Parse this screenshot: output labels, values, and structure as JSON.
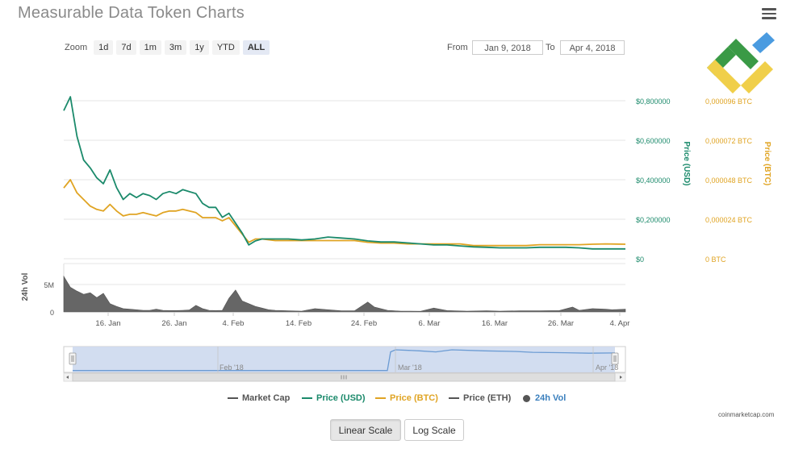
{
  "title": "Measurable Data Token Charts",
  "zoom": {
    "label": "Zoom",
    "buttons": [
      "1d",
      "7d",
      "1m",
      "3m",
      "1y",
      "YTD",
      "ALL"
    ],
    "active": "ALL"
  },
  "range": {
    "from_label": "From",
    "from_value": "Jan 9, 2018",
    "to_label": "To",
    "to_value": "Apr 4, 2018"
  },
  "legend": [
    {
      "label": "Market Cap",
      "color": "#555555",
      "kind": "line"
    },
    {
      "label": "Price (USD)",
      "color": "#1b8a6b",
      "kind": "line"
    },
    {
      "label": "Price (BTC)",
      "color": "#e0a423",
      "kind": "line"
    },
    {
      "label": "Price (ETH)",
      "color": "#555555",
      "kind": "line"
    },
    {
      "label": "24h Vol",
      "color": "#555555",
      "kind": "dot"
    }
  ],
  "credit": "coinmarketcap.com",
  "scale_buttons": {
    "linear": "Linear Scale",
    "log": "Log Scale",
    "active": "linear"
  },
  "colors": {
    "usd": "#1b8a6b",
    "btc": "#e0a423",
    "volume": "#666666",
    "navigator": "#6b9bd3"
  },
  "chart_data": {
    "type": "line",
    "x_axis": {
      "ticks": [
        "16. Jan",
        "26. Jan",
        "4. Feb",
        "14. Feb",
        "24. Feb",
        "6. Mar",
        "16. Mar",
        "26. Mar",
        "4. Apr"
      ],
      "range": [
        "2018-01-09",
        "2018-04-04"
      ]
    },
    "y_axis_usd": {
      "label": "Price (USD)",
      "ticks": [
        "$0",
        "$0,200000",
        "$0,400000",
        "$0,600000",
        "$0,800000"
      ],
      "range": [
        0,
        0.8
      ]
    },
    "y_axis_btc": {
      "label": "Price (BTC)",
      "ticks": [
        "0 BTC",
        "0,000024 BTC",
        "0,000048 BTC",
        "0,000072 BTC",
        "0,000096 BTC"
      ],
      "range": [
        0,
        9.6e-05
      ]
    },
    "y_axis_vol": {
      "label": "24h Vol",
      "ticks": [
        "0",
        "5M"
      ],
      "range": [
        0,
        5000000
      ]
    },
    "navigator_ticks": [
      "Feb '18",
      "Mar '18",
      "Apr '18"
    ],
    "series": [
      {
        "name": "Price (USD)",
        "axis": "usd",
        "points": [
          [
            "2018-01-09",
            0.75
          ],
          [
            "2018-01-10",
            0.82
          ],
          [
            "2018-01-11",
            0.62
          ],
          [
            "2018-01-12",
            0.5
          ],
          [
            "2018-01-13",
            0.46
          ],
          [
            "2018-01-14",
            0.41
          ],
          [
            "2018-01-15",
            0.38
          ],
          [
            "2018-01-16",
            0.45
          ],
          [
            "2018-01-17",
            0.36
          ],
          [
            "2018-01-18",
            0.3
          ],
          [
            "2018-01-19",
            0.33
          ],
          [
            "2018-01-20",
            0.31
          ],
          [
            "2018-01-21",
            0.33
          ],
          [
            "2018-01-22",
            0.32
          ],
          [
            "2018-01-23",
            0.3
          ],
          [
            "2018-01-24",
            0.33
          ],
          [
            "2018-01-25",
            0.34
          ],
          [
            "2018-01-26",
            0.33
          ],
          [
            "2018-01-27",
            0.35
          ],
          [
            "2018-01-28",
            0.34
          ],
          [
            "2018-01-29",
            0.33
          ],
          [
            "2018-01-30",
            0.28
          ],
          [
            "2018-01-31",
            0.26
          ],
          [
            "2018-02-01",
            0.26
          ],
          [
            "2018-02-02",
            0.21
          ],
          [
            "2018-02-03",
            0.23
          ],
          [
            "2018-02-04",
            0.18
          ],
          [
            "2018-02-05",
            0.13
          ],
          [
            "2018-02-06",
            0.07
          ],
          [
            "2018-02-07",
            0.09
          ],
          [
            "2018-02-08",
            0.1
          ],
          [
            "2018-02-10",
            0.1
          ],
          [
            "2018-02-12",
            0.1
          ],
          [
            "2018-02-14",
            0.095
          ],
          [
            "2018-02-16",
            0.1
          ],
          [
            "2018-02-18",
            0.11
          ],
          [
            "2018-02-20",
            0.105
          ],
          [
            "2018-02-22",
            0.1
          ],
          [
            "2018-02-24",
            0.09
          ],
          [
            "2018-02-26",
            0.085
          ],
          [
            "2018-02-28",
            0.085
          ],
          [
            "2018-03-02",
            0.08
          ],
          [
            "2018-03-04",
            0.075
          ],
          [
            "2018-03-06",
            0.07
          ],
          [
            "2018-03-08",
            0.07
          ],
          [
            "2018-03-10",
            0.065
          ],
          [
            "2018-03-12",
            0.06
          ],
          [
            "2018-03-14",
            0.058
          ],
          [
            "2018-03-16",
            0.055
          ],
          [
            "2018-03-18",
            0.055
          ],
          [
            "2018-03-20",
            0.055
          ],
          [
            "2018-03-22",
            0.058
          ],
          [
            "2018-03-24",
            0.058
          ],
          [
            "2018-03-26",
            0.058
          ],
          [
            "2018-03-28",
            0.055
          ],
          [
            "2018-03-30",
            0.05
          ],
          [
            "2018-04-01",
            0.05
          ],
          [
            "2018-04-04",
            0.05
          ]
        ]
      },
      {
        "name": "Price (BTC)",
        "axis": "btc",
        "points": [
          [
            "2018-01-09",
            4.3e-05
          ],
          [
            "2018-01-10",
            4.8e-05
          ],
          [
            "2018-01-11",
            4e-05
          ],
          [
            "2018-01-12",
            3.6e-05
          ],
          [
            "2018-01-13",
            3.2e-05
          ],
          [
            "2018-01-14",
            3e-05
          ],
          [
            "2018-01-15",
            2.9e-05
          ],
          [
            "2018-01-16",
            3.3e-05
          ],
          [
            "2018-01-17",
            2.9e-05
          ],
          [
            "2018-01-18",
            2.6e-05
          ],
          [
            "2018-01-19",
            2.7e-05
          ],
          [
            "2018-01-20",
            2.7e-05
          ],
          [
            "2018-01-21",
            2.8e-05
          ],
          [
            "2018-01-22",
            2.7e-05
          ],
          [
            "2018-01-23",
            2.6e-05
          ],
          [
            "2018-01-24",
            2.8e-05
          ],
          [
            "2018-01-25",
            2.9e-05
          ],
          [
            "2018-01-26",
            2.9e-05
          ],
          [
            "2018-01-27",
            3e-05
          ],
          [
            "2018-01-28",
            2.9e-05
          ],
          [
            "2018-01-29",
            2.8e-05
          ],
          [
            "2018-01-30",
            2.5e-05
          ],
          [
            "2018-01-31",
            2.5e-05
          ],
          [
            "2018-02-01",
            2.5e-05
          ],
          [
            "2018-02-02",
            2.3e-05
          ],
          [
            "2018-02-03",
            2.5e-05
          ],
          [
            "2018-02-04",
            2e-05
          ],
          [
            "2018-02-05",
            1.5e-05
          ],
          [
            "2018-02-06",
            1e-05
          ],
          [
            "2018-02-07",
            1.2e-05
          ],
          [
            "2018-02-08",
            1.2e-05
          ],
          [
            "2018-02-10",
            1.1e-05
          ],
          [
            "2018-02-12",
            1.1e-05
          ],
          [
            "2018-02-14",
            1.1e-05
          ],
          [
            "2018-02-16",
            1.1e-05
          ],
          [
            "2018-02-18",
            1.1e-05
          ],
          [
            "2018-02-20",
            1.1e-05
          ],
          [
            "2018-02-22",
            1.1e-05
          ],
          [
            "2018-02-24",
            1e-05
          ],
          [
            "2018-02-26",
            9.5e-06
          ],
          [
            "2018-02-28",
            9.5e-06
          ],
          [
            "2018-03-02",
            9e-06
          ],
          [
            "2018-03-04",
            9e-06
          ],
          [
            "2018-03-06",
            9e-06
          ],
          [
            "2018-03-08",
            9e-06
          ],
          [
            "2018-03-10",
            9e-06
          ],
          [
            "2018-03-12",
            8e-06
          ],
          [
            "2018-03-14",
            8e-06
          ],
          [
            "2018-03-16",
            8e-06
          ],
          [
            "2018-03-18",
            8e-06
          ],
          [
            "2018-03-20",
            8e-06
          ],
          [
            "2018-03-22",
            8.5e-06
          ],
          [
            "2018-03-24",
            8.5e-06
          ],
          [
            "2018-03-26",
            8.5e-06
          ],
          [
            "2018-03-28",
            8.5e-06
          ],
          [
            "2018-03-30",
            8.8e-06
          ],
          [
            "2018-04-01",
            9e-06
          ],
          [
            "2018-04-04",
            8.8e-06
          ]
        ]
      },
      {
        "name": "24h Vol",
        "axis": "vol",
        "points": [
          [
            "2018-01-09",
            6500000
          ],
          [
            "2018-01-10",
            4500000
          ],
          [
            "2018-01-11",
            3800000
          ],
          [
            "2018-01-12",
            3200000
          ],
          [
            "2018-01-13",
            3500000
          ],
          [
            "2018-01-14",
            2600000
          ],
          [
            "2018-01-15",
            3400000
          ],
          [
            "2018-01-16",
            1500000
          ],
          [
            "2018-01-17",
            1000000
          ],
          [
            "2018-01-18",
            600000
          ],
          [
            "2018-01-19",
            500000
          ],
          [
            "2018-01-20",
            400000
          ],
          [
            "2018-01-21",
            300000
          ],
          [
            "2018-01-22",
            300000
          ],
          [
            "2018-01-23",
            500000
          ],
          [
            "2018-01-24",
            300000
          ],
          [
            "2018-01-25",
            250000
          ],
          [
            "2018-01-26",
            250000
          ],
          [
            "2018-01-27",
            300000
          ],
          [
            "2018-01-28",
            350000
          ],
          [
            "2018-01-29",
            1200000
          ],
          [
            "2018-01-30",
            600000
          ],
          [
            "2018-01-31",
            300000
          ],
          [
            "2018-02-01",
            250000
          ],
          [
            "2018-02-02",
            300000
          ],
          [
            "2018-02-03",
            2500000
          ],
          [
            "2018-02-04",
            4000000
          ],
          [
            "2018-02-05",
            2000000
          ],
          [
            "2018-02-06",
            1500000
          ],
          [
            "2018-02-07",
            1000000
          ],
          [
            "2018-02-08",
            700000
          ],
          [
            "2018-02-09",
            400000
          ],
          [
            "2018-02-10",
            300000
          ],
          [
            "2018-02-12",
            200000
          ],
          [
            "2018-02-14",
            150000
          ],
          [
            "2018-02-16",
            600000
          ],
          [
            "2018-02-18",
            400000
          ],
          [
            "2018-02-20",
            200000
          ],
          [
            "2018-02-22",
            200000
          ],
          [
            "2018-02-24",
            1800000
          ],
          [
            "2018-02-25",
            900000
          ],
          [
            "2018-02-27",
            300000
          ],
          [
            "2018-03-01",
            150000
          ],
          [
            "2018-03-04",
            120000
          ],
          [
            "2018-03-06",
            700000
          ],
          [
            "2018-03-08",
            250000
          ],
          [
            "2018-03-11",
            150000
          ],
          [
            "2018-03-14",
            200000
          ],
          [
            "2018-03-16",
            150000
          ],
          [
            "2018-03-19",
            200000
          ],
          [
            "2018-03-22",
            200000
          ],
          [
            "2018-03-25",
            250000
          ],
          [
            "2018-03-27",
            900000
          ],
          [
            "2018-03-28",
            300000
          ],
          [
            "2018-03-30",
            600000
          ],
          [
            "2018-04-01",
            500000
          ],
          [
            "2018-04-02",
            400000
          ],
          [
            "2018-04-04",
            500000
          ]
        ]
      }
    ]
  }
}
